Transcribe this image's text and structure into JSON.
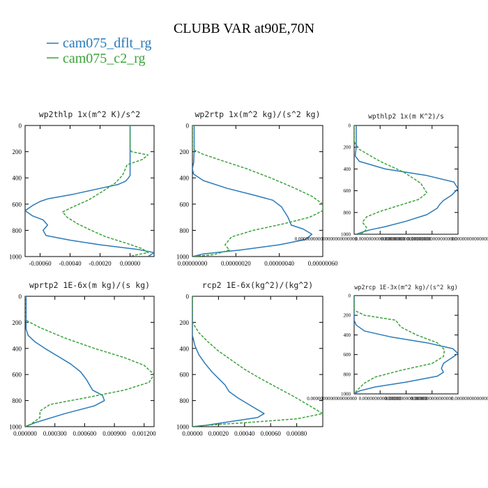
{
  "title": "CLUBB VAR at90E,70N",
  "legend": [
    {
      "label": "cam075_dflt_rg",
      "color": "#2a7ab8"
    },
    {
      "label": "cam075_c2_rg",
      "color": "#3aa33a"
    }
  ],
  "chart_data": [
    {
      "type": "line",
      "title": "wp2thlp  1x(m^2 K)/s^2",
      "xlim": [
        -0.0007,
        0.00016
      ],
      "ylim": [
        0,
        1000
      ],
      "y_inverted": true,
      "xticks": [
        -0.0006,
        -0.0004,
        -0.0002,
        0.0
      ],
      "xtick_labels": [
        "-0.00060",
        "-0.00040",
        "-0.00020",
        "0.00000"
      ],
      "yticks": [
        0,
        200,
        400,
        600,
        800,
        1000
      ],
      "ytick_labels": [
        "0",
        "200",
        "400",
        "600",
        "800",
        "1000"
      ],
      "series": [
        {
          "name": "cam075_dflt_rg",
          "color": "#2a7ab8",
          "dash": "solid",
          "x": [
            0,
            0,
            0,
            0,
            -1e-05,
            -3e-05,
            -8e-05,
            -0.0002,
            -0.00038,
            -0.00055,
            -0.0006,
            -0.00065,
            -0.0007,
            -0.00065,
            -0.00058,
            -0.00055,
            -0.00058,
            -0.00056,
            -0.0004,
            -0.0002,
            5e-05,
            0.00016,
            0.00012
          ],
          "y": [
            0,
            200,
            300,
            380,
            400,
            425,
            450,
            480,
            525,
            560,
            580,
            610,
            650,
            690,
            720,
            760,
            800,
            840,
            875,
            910,
            945,
            970,
            1000
          ]
        },
        {
          "name": "cam075_c2_rg",
          "color": "#3aa33a",
          "dash": "dashed",
          "x": [
            0,
            0,
            1e-05,
            0.00012,
            8e-05,
            -2e-05,
            -5e-05,
            -0.0001,
            -0.00018,
            -0.00028,
            -0.00038,
            -0.00045,
            -0.00042,
            -0.00035,
            -0.00026,
            -0.00016,
            -2e-05,
            8e-05,
            0.00012,
            3e-05,
            0.0
          ],
          "y": [
            0,
            180,
            200,
            225,
            260,
            300,
            380,
            440,
            500,
            570,
            620,
            660,
            700,
            750,
            800,
            850,
            900,
            940,
            970,
            990,
            1000
          ]
        }
      ]
    },
    {
      "type": "line",
      "title": "wp2rtp  1x(m^2 kg)/(s^2 kg)",
      "xlim": [
        0,
        6e-07
      ],
      "ylim": [
        0,
        1000
      ],
      "y_inverted": true,
      "xticks": [
        0,
        2e-07,
        4e-07,
        6e-07
      ],
      "xtick_labels": [
        "0.00000000",
        "0.00000020",
        "0.00000040",
        "0.00000060"
      ],
      "yticks": [
        0,
        200,
        400,
        600,
        800,
        1000
      ],
      "ytick_labels": [
        "0",
        "200",
        "400",
        "600",
        "800",
        "1000"
      ],
      "series": [
        {
          "name": "cam075_dflt_rg",
          "color": "#2a7ab8",
          "dash": "solid",
          "x": [
            8e-09,
            8e-09,
            6e-09,
            0.0,
            5e-09,
            5e-08,
            1.6e-07,
            2.8e-07,
            3.7e-07,
            4.1e-07,
            4.4e-07,
            4.55e-07,
            5.1e-07,
            5.5e-07,
            5.2e-07,
            4e-07,
            2.2e-07,
            5e-08,
            0.0
          ],
          "y": [
            0,
            200,
            280,
            330,
            370,
            420,
            480,
            530,
            570,
            620,
            700,
            760,
            790,
            830,
            870,
            910,
            950,
            980,
            1000
          ]
        },
        {
          "name": "cam075_c2_rg",
          "color": "#3aa33a",
          "dash": "dashed",
          "x": [
            0,
            0,
            5e-08,
            1.4e-07,
            2.5e-07,
            3.6e-07,
            4.6e-07,
            5.5e-07,
            6e-07,
            6e-07,
            5.4e-07,
            4.2e-07,
            2.8e-07,
            1.8e-07,
            1.5e-07,
            1.7e-07,
            1e-07,
            0.0
          ],
          "y": [
            0,
            180,
            220,
            270,
            330,
            400,
            470,
            540,
            600,
            650,
            700,
            750,
            800,
            850,
            910,
            950,
            985,
            1000
          ]
        }
      ]
    },
    {
      "type": "line",
      "title": "wpthlp2  1x(m K^2)/s",
      "xlim": [
        0,
        1
      ],
      "ylim": [
        0,
        1000
      ],
      "y_inverted": true,
      "xticks": [
        0,
        0.25,
        0.5,
        0.75,
        1
      ],
      "xtick_labels": [
        "0.000000000000000000000000",
        "0.0000000000000000000",
        "0.0000000000000000000",
        "0.0000000000000000000",
        "0.00000000000000000"
      ],
      "yticks": [
        0,
        200,
        400,
        600,
        800,
        1000
      ],
      "ytick_labels": [
        "0",
        "200",
        "400",
        "600",
        "800",
        "1000"
      ],
      "series": [
        {
          "name": "cam075_dflt_rg",
          "color": "#2a7ab8",
          "dash": "solid",
          "x": [
            0.02,
            0.02,
            0.01,
            0.05,
            0.3,
            0.7,
            0.96,
            1.0,
            0.94,
            0.86,
            0.82,
            0.8,
            0.7,
            0.5,
            0.3,
            0.15,
            0.08,
            0.02
          ],
          "y": [
            0,
            200,
            280,
            330,
            400,
            460,
            520,
            580,
            640,
            690,
            730,
            760,
            820,
            880,
            930,
            960,
            980,
            1000
          ]
        },
        {
          "name": "cam075_c2_rg",
          "color": "#3aa33a",
          "dash": "dashed",
          "x": [
            0,
            0.0,
            0.05,
            0.25,
            0.48,
            0.64,
            0.7,
            0.62,
            0.45,
            0.25,
            0.12,
            0.08,
            0.12,
            0.1,
            0.04
          ],
          "y": [
            0,
            150,
            220,
            330,
            430,
            530,
            620,
            680,
            730,
            790,
            840,
            890,
            940,
            980,
            1000
          ]
        }
      ]
    },
    {
      "type": "line",
      "title": "wprtp2  1E-6x(m kg)/(s kg)",
      "xlim": [
        0,
        0.0013
      ],
      "ylim": [
        0,
        1000
      ],
      "y_inverted": true,
      "xticks": [
        0,
        0.0003,
        0.0006,
        0.0009,
        0.0012
      ],
      "xtick_labels": [
        "0.000000",
        "0.000300",
        "0.000600",
        "0.000900",
        "0.001200"
      ],
      "yticks": [
        0,
        200,
        400,
        600,
        800,
        1000
      ],
      "ytick_labels": [
        "0",
        "200",
        "400",
        "600",
        "800",
        "1000"
      ],
      "series": [
        {
          "name": "cam075_dflt_rg",
          "color": "#2a7ab8",
          "dash": "solid",
          "x": [
            1e-05,
            1e-05,
            3e-05,
            0.0001,
            0.0002,
            0.00033,
            0.00046,
            0.00056,
            0.00062,
            0.00065,
            0.00068,
            0.00078,
            0.0008,
            0.0007,
            0.0004,
            0.0001,
            0.0
          ],
          "y": [
            0,
            250,
            300,
            350,
            400,
            460,
            520,
            580,
            640,
            680,
            720,
            760,
            800,
            840,
            900,
            970,
            1000
          ]
        },
        {
          "name": "cam075_c2_rg",
          "color": "#3aa33a",
          "dash": "dashed",
          "x": [
            0,
            0.0,
            0.00015,
            0.0004,
            0.0007,
            0.001,
            0.0012,
            0.0013,
            0.00125,
            0.001,
            0.0006,
            0.00025,
            0.00015,
            0.00015,
            6e-05,
            0.0
          ],
          "y": [
            0,
            180,
            240,
            320,
            400,
            470,
            530,
            600,
            660,
            720,
            780,
            830,
            880,
            930,
            980,
            1000
          ]
        }
      ]
    },
    {
      "type": "line",
      "title": "rcp2  1E-6x(kg^2)/(kg^2)",
      "xlim": [
        0,
        0.001
      ],
      "ylim": [
        0,
        1000
      ],
      "y_inverted": true,
      "xticks": [
        0,
        0.0002,
        0.0004,
        0.0006,
        0.0008
      ],
      "xtick_labels": [
        "0.00000",
        "0.00020",
        "0.00040",
        "0.00060",
        "0.00080"
      ],
      "yticks": [
        0,
        200,
        400,
        600,
        800,
        1000
      ],
      "ytick_labels": [
        "0",
        "200",
        "400",
        "600",
        "800",
        "1000"
      ],
      "series": [
        {
          "name": "cam075_dflt_rg",
          "color": "#2a7ab8",
          "dash": "solid",
          "x": [
            0,
            0,
            2e-05,
            5e-05,
            0.0001,
            0.00015,
            0.0002,
            0.00025,
            0.00028,
            0.00035,
            0.00045,
            0.00055,
            0.0005,
            0.0003,
            0.0001,
            0.0
          ],
          "y": [
            0,
            300,
            380,
            450,
            520,
            580,
            630,
            680,
            730,
            780,
            840,
            900,
            930,
            960,
            990,
            1000
          ]
        },
        {
          "name": "cam075_c2_rg",
          "color": "#3aa33a",
          "dash": "dashed",
          "x": [
            0,
            0,
            5e-05,
            0.00012,
            0.0002,
            0.0003,
            0.0004,
            0.00052,
            0.00065,
            0.00078,
            0.0009,
            0.001,
            0.0008,
            0.0004,
            0.0001,
            0.0
          ],
          "y": [
            0,
            200,
            280,
            350,
            420,
            490,
            560,
            630,
            700,
            770,
            840,
            900,
            940,
            970,
            990,
            1000
          ]
        }
      ]
    },
    {
      "type": "line",
      "title": "wp2rcp  1E-3x(m^2 kg)/(s^2 kg)",
      "xlim": [
        0,
        1
      ],
      "ylim": [
        0,
        1000
      ],
      "y_inverted": true,
      "xticks": [
        0,
        0.25,
        0.5,
        0.75,
        1
      ],
      "xtick_labels": [
        "0.0000000000000000000",
        "0.0000000000000000",
        "0.0000000000000000",
        "0.0000000000000000",
        "0.00000000000000000"
      ],
      "yticks": [
        0,
        200,
        400,
        600,
        800,
        1000
      ],
      "ytick_labels": [
        "0",
        "200",
        "400",
        "600",
        "800",
        "1000"
      ],
      "series": [
        {
          "name": "cam075_dflt_rg",
          "color": "#2a7ab8",
          "dash": "solid",
          "x": [
            0,
            0,
            0.02,
            0.1,
            0.35,
            0.7,
            0.95,
            1.0,
            0.93,
            0.86,
            0.84,
            0.86,
            0.8,
            0.5,
            0.2,
            0.05,
            0.0
          ],
          "y": [
            0,
            250,
            300,
            360,
            420,
            480,
            540,
            590,
            640,
            690,
            740,
            780,
            820,
            880,
            930,
            970,
            1000
          ]
        },
        {
          "name": "cam075_c2_rg",
          "color": "#3aa33a",
          "dash": "dashed",
          "x": [
            0,
            0.0,
            0.1,
            0.4,
            0.45,
            0.6,
            0.8,
            0.87,
            0.86,
            0.75,
            0.45,
            0.2,
            0.1,
            0.03,
            0.0
          ],
          "y": [
            0,
            150,
            200,
            250,
            320,
            400,
            480,
            550,
            620,
            690,
            760,
            830,
            890,
            960,
            1000
          ]
        }
      ]
    }
  ]
}
